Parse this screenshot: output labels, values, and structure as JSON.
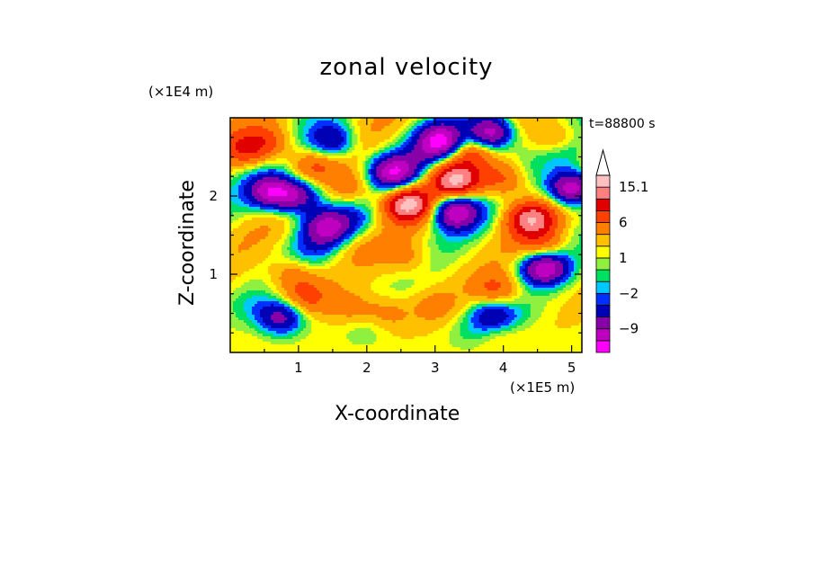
{
  "chart_data": {
    "type": "heatmap",
    "title": "zonal velocity",
    "xlabel": "X-coordinate",
    "ylabel": "Z-coordinate",
    "x_unit": "(×1E5 m)",
    "y_unit": "(×1E4 m)",
    "timestamp": "t=88800 s",
    "xlim": [
      0,
      5.15
    ],
    "ylim": [
      0,
      3.0
    ],
    "x_ticks": [
      1,
      2,
      3,
      4,
      5
    ],
    "y_ticks": [
      1,
      2
    ],
    "colorbar": {
      "levels": [
        -15.1,
        -12,
        -9,
        -6,
        -3.5,
        -2,
        -1,
        0,
        1,
        2,
        3.5,
        6,
        9,
        12,
        15.1
      ],
      "labels": [
        "15.1",
        "6",
        "1",
        "−2",
        "−9"
      ],
      "label_values": [
        15.1,
        6,
        1,
        -2,
        -9
      ],
      "colors": [
        "#ff00ff",
        "#c000c0",
        "#8800a8",
        "#0000b4",
        "#0030ff",
        "#00c8ff",
        "#00e060",
        "#90f040",
        "#ffff00",
        "#ffc000",
        "#ff8000",
        "#ff4000",
        "#e00000",
        "#ff8080",
        "#ffc0c0"
      ],
      "extend": "max"
    },
    "features": [
      {
        "x": 1.8,
        "z": 0.55,
        "u": 3.0
      },
      {
        "x": 2.3,
        "z": 0.5,
        "u": 3.0
      },
      {
        "x": 3.0,
        "z": 0.6,
        "u": 2.5
      },
      {
        "x": 2.6,
        "z": 1.2,
        "u": 3.0
      },
      {
        "x": 1.9,
        "z": 1.35,
        "u": 1.2
      },
      {
        "x": 0.9,
        "z": 1.0,
        "u": 4.0
      },
      {
        "x": 1.1,
        "z": 0.7,
        "u": 5.0
      },
      {
        "x": 0.25,
        "z": 2.6,
        "u": 7.0
      },
      {
        "x": 0.6,
        "z": 2.7,
        "u": 5.0
      },
      {
        "x": 1.2,
        "z": 2.4,
        "u": 4.0
      },
      {
        "x": 2.6,
        "z": 1.9,
        "u": 14.0
      },
      {
        "x": 3.3,
        "z": 2.2,
        "u": 13.0
      },
      {
        "x": 3.5,
        "z": 2.6,
        "u": 6.0
      },
      {
        "x": 4.4,
        "z": 1.7,
        "u": 12.0
      },
      {
        "x": 4.6,
        "z": 1.3,
        "u": 6.0
      },
      {
        "x": 4.0,
        "z": 2.2,
        "u": 6.0
      },
      {
        "x": 3.9,
        "z": 0.8,
        "u": 5.0
      },
      {
        "x": 4.8,
        "z": 2.7,
        "u": 6.0
      },
      {
        "x": 1.8,
        "z": 2.1,
        "u": 4.0
      },
      {
        "x": 3.9,
        "z": 0.3,
        "u": 2.5
      },
      {
        "x": 3.1,
        "z": 2.7,
        "u": -14.0
      },
      {
        "x": 3.3,
        "z": 1.8,
        "u": -13.0
      },
      {
        "x": 2.4,
        "z": 2.3,
        "u": -12.0
      },
      {
        "x": 0.6,
        "z": 2.05,
        "u": -12.0
      },
      {
        "x": 1.0,
        "z": 2.0,
        "u": -10.0
      },
      {
        "x": 1.5,
        "z": 2.7,
        "u": -8.0
      },
      {
        "x": 3.8,
        "z": 2.8,
        "u": -14.0
      },
      {
        "x": 4.6,
        "z": 1.1,
        "u": -14.0
      },
      {
        "x": 5.0,
        "z": 2.1,
        "u": -14.0
      },
      {
        "x": 1.4,
        "z": 1.6,
        "u": -10.0
      },
      {
        "x": 0.75,
        "z": 0.45,
        "u": -9.0
      },
      {
        "x": 3.85,
        "z": 0.45,
        "u": -8.0
      },
      {
        "x": 4.9,
        "z": 2.6,
        "u": -4.0
      },
      {
        "x": 1.8,
        "z": 1.7,
        "u": -3.0
      },
      {
        "x": 2.8,
        "z": 2.5,
        "u": -3.0
      },
      {
        "x": 1.2,
        "z": 1.3,
        "u": -2.5
      },
      {
        "x": 3.5,
        "z": 0.25,
        "u": -1.5
      },
      {
        "x": 2.0,
        "z": 0.3,
        "u": -1.5
      },
      {
        "x": 0.3,
        "z": 0.6,
        "u": -1.5
      },
      {
        "x": 4.3,
        "z": 0.5,
        "u": -1.0
      }
    ]
  }
}
